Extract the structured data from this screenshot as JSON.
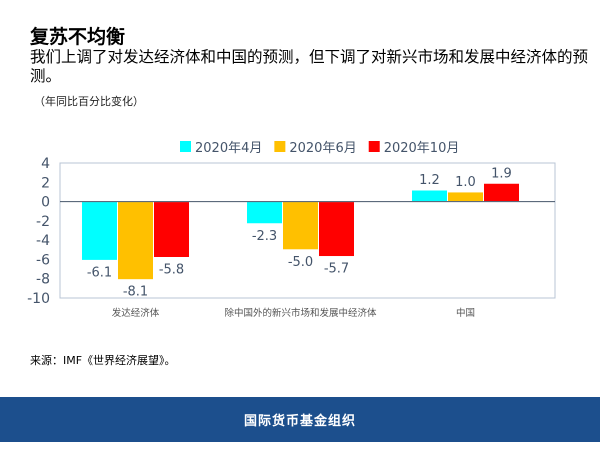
{
  "title": "复苏不均衡",
  "subtitle": "我们上调了对发达经济体和中国的预测，但下调了对新兴市场和发展中经济体的预测。",
  "unit": "（年同比百分比变化）",
  "source": "来源：IMF《世界经济展望》。",
  "footer": "国际货币基金组织",
  "chart_data": {
    "type": "bar",
    "categories": [
      "发达经济体",
      "除中国外的新兴市场和发展中经济体",
      "中国"
    ],
    "series": [
      {
        "name": "2020年4月",
        "color": "#00ffff",
        "values": [
          -6.1,
          -2.3,
          1.2
        ]
      },
      {
        "name": "2020年6月",
        "color": "#ffc000",
        "values": [
          -8.1,
          -5.0,
          1.0
        ]
      },
      {
        "name": "2020年10月",
        "color": "#ff0000",
        "values": [
          -5.8,
          -5.7,
          1.9
        ]
      }
    ],
    "ylim": [
      -10,
      4
    ],
    "yticks": [
      4,
      2,
      0,
      -2,
      -4,
      -6,
      -8,
      -10
    ],
    "legend": "top",
    "grid": false
  }
}
